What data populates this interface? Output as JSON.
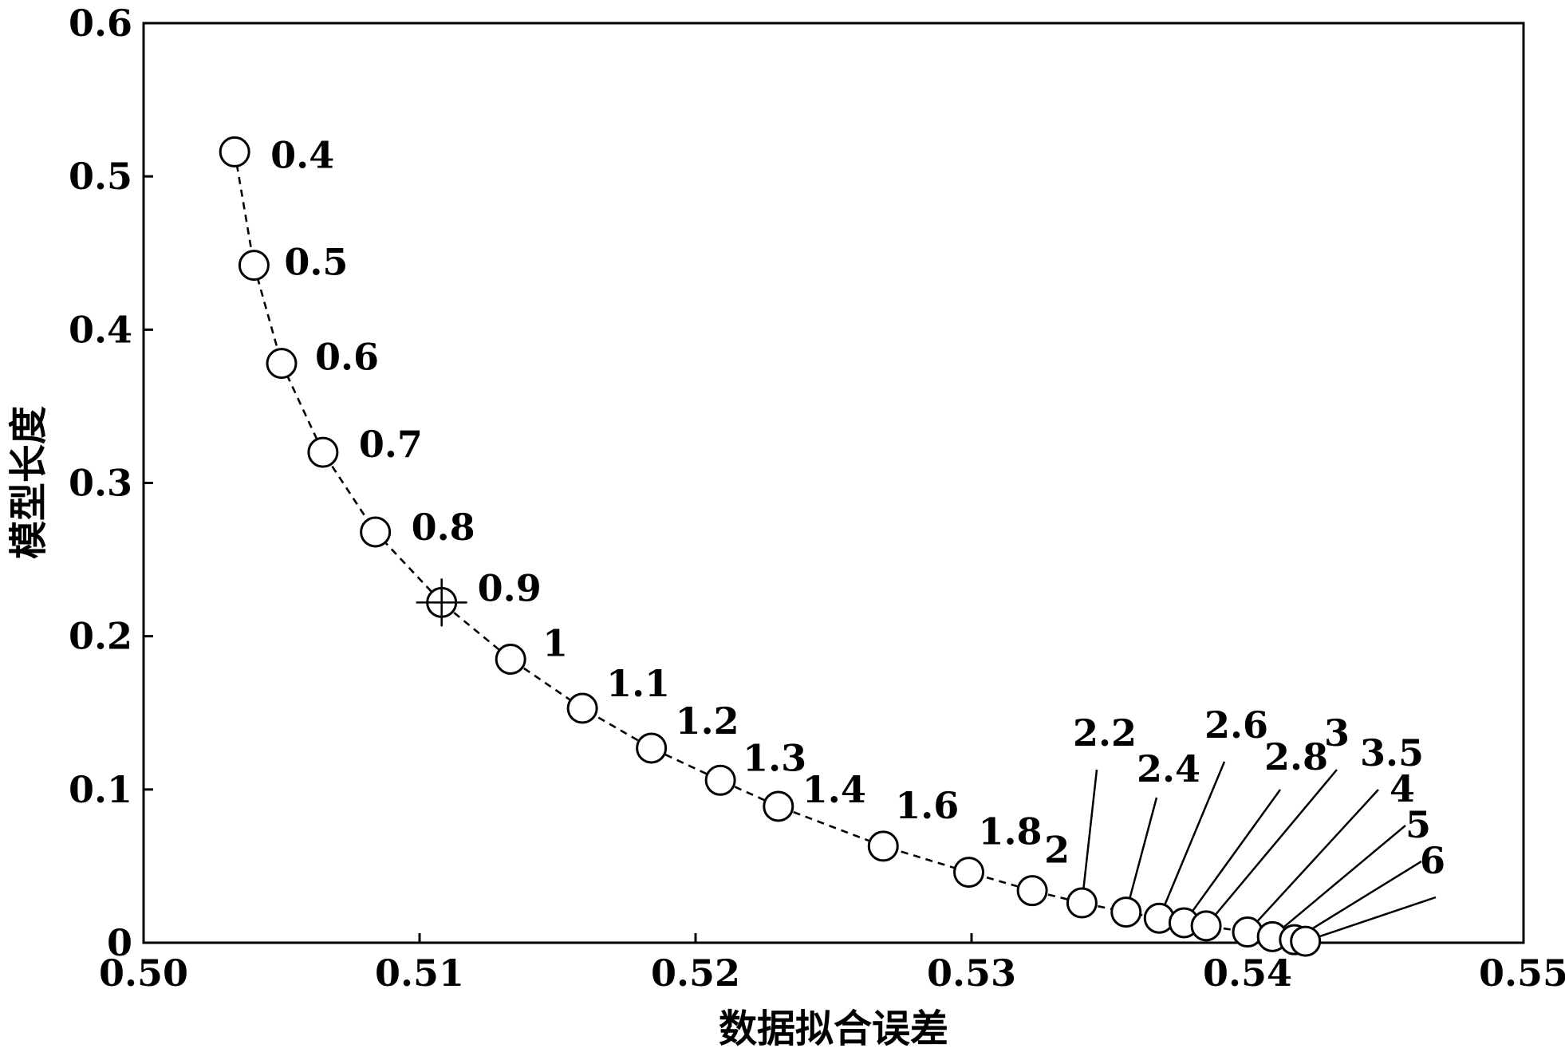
{
  "chart_data": {
    "type": "scatter",
    "title": "",
    "xlabel": "数据拟合误差",
    "ylabel": "模型长度",
    "xlim": [
      0.5,
      0.55
    ],
    "ylim": [
      0,
      0.6
    ],
    "grid": false,
    "xticks": [
      "0.50",
      "0.51",
      "0.52",
      "0.53",
      "0.54",
      "0.55"
    ],
    "yticks": [
      "0",
      "0.1",
      "0.2",
      "0.3",
      "0.4",
      "0.5",
      "0.6"
    ],
    "series": [
      {
        "marker": "circle",
        "line_style": "dashed",
        "color": "#000000",
        "points": [
          {
            "x": 0.5033,
            "y": 0.516,
            "label": "0.4"
          },
          {
            "x": 0.504,
            "y": 0.442,
            "label": "0.5"
          },
          {
            "x": 0.505,
            "y": 0.378,
            "label": "0.6"
          },
          {
            "x": 0.5065,
            "y": 0.32,
            "label": "0.7"
          },
          {
            "x": 0.5084,
            "y": 0.268,
            "label": "0.8"
          },
          {
            "x": 0.5108,
            "y": 0.222,
            "label": "0.9",
            "highlight": true
          },
          {
            "x": 0.5133,
            "y": 0.185,
            "label": "1"
          },
          {
            "x": 0.5159,
            "y": 0.153,
            "label": "1.1"
          },
          {
            "x": 0.5184,
            "y": 0.127,
            "label": "1.2"
          },
          {
            "x": 0.5209,
            "y": 0.106,
            "label": "1.3"
          },
          {
            "x": 0.523,
            "y": 0.089,
            "label": "1.4"
          },
          {
            "x": 0.5268,
            "y": 0.063,
            "label": "1.6"
          },
          {
            "x": 0.5299,
            "y": 0.046,
            "label": "1.8"
          },
          {
            "x": 0.5322,
            "y": 0.034,
            "label": "2"
          },
          {
            "x": 0.534,
            "y": 0.026,
            "label": "2.2"
          },
          {
            "x": 0.5356,
            "y": 0.02,
            "label": "2.4"
          },
          {
            "x": 0.5368,
            "y": 0.016,
            "label": "2.6"
          },
          {
            "x": 0.5377,
            "y": 0.013,
            "label": "2.8"
          },
          {
            "x": 0.5385,
            "y": 0.011,
            "label": "3"
          },
          {
            "x": 0.54,
            "y": 0.007,
            "label": "3.5"
          },
          {
            "x": 0.5409,
            "y": 0.004,
            "label": "4"
          },
          {
            "x": 0.5417,
            "y": 0.002,
            "label": "5"
          },
          {
            "x": 0.5421,
            "y": 0.001,
            "label": "6"
          }
        ]
      }
    ]
  }
}
